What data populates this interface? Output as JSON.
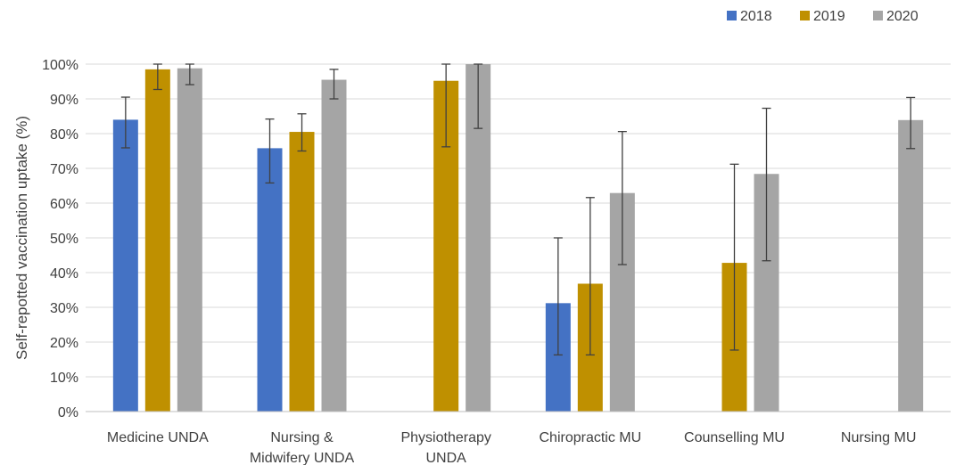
{
  "chart_data": {
    "type": "bar",
    "title": "",
    "xlabel": "",
    "ylabel": "Self-repotted vaccination uptake (%)",
    "ylim": [
      0,
      100
    ],
    "y_ticks": [
      "0%",
      "10%",
      "20%",
      "30%",
      "40%",
      "50%",
      "60%",
      "70%",
      "80%",
      "90%",
      "100%"
    ],
    "y_tick_values": [
      0,
      10,
      20,
      30,
      40,
      50,
      60,
      70,
      80,
      90,
      100
    ],
    "grid": true,
    "legend_position": "top-right",
    "categories": [
      [
        "Medicine UNDA"
      ],
      [
        "Nursing &",
        "Midwifery UNDA"
      ],
      [
        "Physiotherapy",
        "UNDA"
      ],
      [
        "Chiropractic MU"
      ],
      [
        "Counselling MU"
      ],
      [
        "Nursing MU"
      ]
    ],
    "series": [
      {
        "name": "2018",
        "color": "#4472c4",
        "values": [
          84,
          75.8,
          null,
          31.2,
          null,
          null
        ],
        "error_low": [
          75.9,
          65.8,
          null,
          16.3,
          null,
          null
        ],
        "error_high": [
          90.5,
          84.2,
          null,
          50.0,
          null,
          null
        ]
      },
      {
        "name": "2019",
        "color": "#bf9000",
        "values": [
          98.5,
          80.5,
          95.2,
          36.8,
          42.8,
          null
        ],
        "error_low": [
          92.7,
          75.0,
          76.2,
          16.3,
          17.7,
          null
        ],
        "error_high": [
          100,
          85.7,
          100,
          61.6,
          71.2,
          null
        ]
      },
      {
        "name": "2020",
        "color": "#a5a5a5",
        "values": [
          98.8,
          95.5,
          100,
          62.9,
          68.4,
          83.9
        ],
        "error_low": [
          94.1,
          90.0,
          81.5,
          42.3,
          43.4,
          75.7
        ],
        "error_high": [
          100,
          98.5,
          100,
          80.6,
          87.3,
          90.4
        ]
      }
    ]
  }
}
